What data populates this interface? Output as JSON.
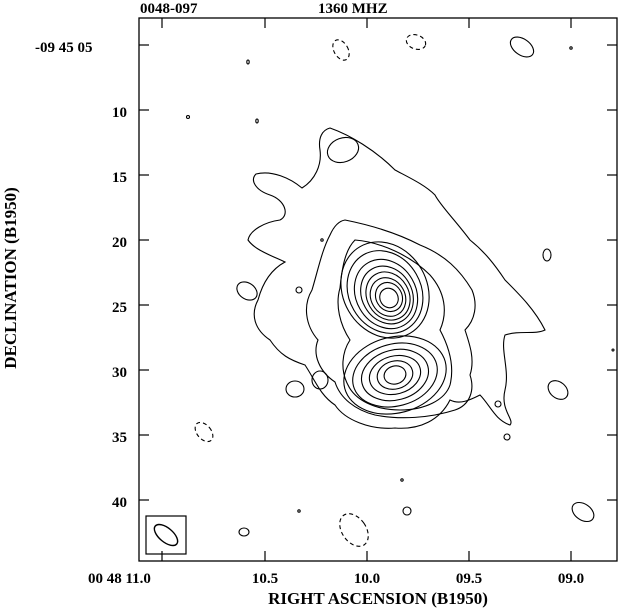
{
  "header": {
    "source": "0048-097",
    "frequency": "1360 MHZ"
  },
  "axes": {
    "x_label": "RIGHT ASCENSION (B1950)",
    "y_label": "DECLINATION (B1950)",
    "x_ticks": [
      {
        "label": "00 48 11.0",
        "value": 11.0
      },
      {
        "label": "10.5",
        "value": 10.5
      },
      {
        "label": "10.0",
        "value": 10.0
      },
      {
        "label": "09.5",
        "value": 9.5
      },
      {
        "label": "09.0",
        "value": 9.0
      }
    ],
    "y_ticks": [
      {
        "label": "-09 45 05",
        "value": 5
      },
      {
        "label": "10",
        "value": 10
      },
      {
        "label": "15",
        "value": 15
      },
      {
        "label": "20",
        "value": 20
      },
      {
        "label": "25",
        "value": 25
      },
      {
        "label": "30",
        "value": 30
      },
      {
        "label": "35",
        "value": 35
      },
      {
        "label": "40",
        "value": 40
      }
    ]
  },
  "components": [
    {
      "name": "upper core",
      "ra_sec": 9.9,
      "dec_arcsec": 24.5
    },
    {
      "name": "lower core",
      "ra_sec": 9.85,
      "dec_arcsec": 30.5
    }
  ],
  "beam": {
    "shape": "ellipse",
    "orientation": "position angle approx 135 deg"
  }
}
